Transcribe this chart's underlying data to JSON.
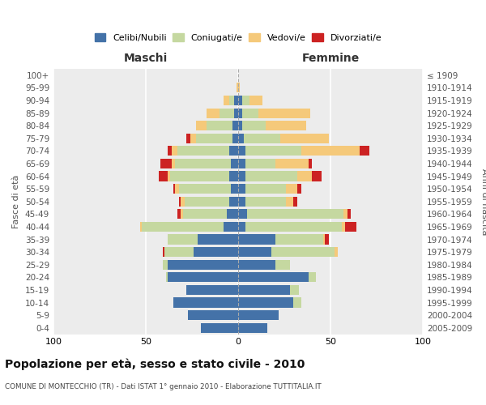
{
  "age_groups": [
    "0-4",
    "5-9",
    "10-14",
    "15-19",
    "20-24",
    "25-29",
    "30-34",
    "35-39",
    "40-44",
    "45-49",
    "50-54",
    "55-59",
    "60-64",
    "65-69",
    "70-74",
    "75-79",
    "80-84",
    "85-89",
    "90-94",
    "95-99",
    "100+"
  ],
  "birth_years": [
    "2005-2009",
    "2000-2004",
    "1995-1999",
    "1990-1994",
    "1985-1989",
    "1980-1984",
    "1975-1979",
    "1970-1974",
    "1965-1969",
    "1960-1964",
    "1955-1959",
    "1950-1954",
    "1945-1949",
    "1940-1944",
    "1935-1939",
    "1930-1934",
    "1925-1929",
    "1920-1924",
    "1915-1919",
    "1910-1914",
    "≤ 1909"
  ],
  "maschi": {
    "celibi": [
      20,
      27,
      35,
      28,
      38,
      38,
      24,
      22,
      8,
      6,
      5,
      4,
      5,
      4,
      5,
      3,
      3,
      2,
      2,
      0,
      0
    ],
    "coniugati": [
      0,
      0,
      0,
      0,
      1,
      3,
      16,
      16,
      44,
      24,
      24,
      28,
      32,
      30,
      28,
      20,
      14,
      8,
      3,
      0,
      0
    ],
    "vedovi": [
      0,
      0,
      0,
      0,
      0,
      0,
      0,
      0,
      1,
      1,
      2,
      2,
      1,
      2,
      3,
      3,
      6,
      7,
      3,
      1,
      0
    ],
    "divorziati": [
      0,
      0,
      0,
      0,
      0,
      0,
      1,
      0,
      0,
      2,
      1,
      1,
      5,
      6,
      2,
      2,
      0,
      0,
      0,
      0,
      0
    ]
  },
  "femmine": {
    "nubili": [
      16,
      22,
      30,
      28,
      38,
      20,
      18,
      20,
      4,
      5,
      4,
      4,
      4,
      4,
      4,
      3,
      2,
      2,
      2,
      0,
      0
    ],
    "coniugate": [
      0,
      0,
      4,
      5,
      4,
      8,
      34,
      26,
      52,
      52,
      22,
      22,
      28,
      16,
      30,
      20,
      13,
      9,
      4,
      0,
      0
    ],
    "vedove": [
      0,
      0,
      0,
      0,
      0,
      0,
      2,
      1,
      2,
      2,
      4,
      6,
      8,
      18,
      32,
      26,
      22,
      28,
      7,
      1,
      0
    ],
    "divorziate": [
      0,
      0,
      0,
      0,
      0,
      0,
      0,
      2,
      6,
      2,
      2,
      2,
      5,
      2,
      5,
      0,
      0,
      0,
      0,
      0,
      0
    ]
  },
  "colors": {
    "celibi": "#4472a8",
    "coniugati": "#c5d8a0",
    "vedovi": "#f5c97a",
    "divorziati": "#cc2222"
  },
  "title": "Popolazione per età, sesso e stato civile - 2010",
  "subtitle": "COMUNE DI MONTECCHIO (TR) - Dati ISTAT 1° gennaio 2010 - Elaborazione TUTTITALIA.IT",
  "xlabel_left": "Maschi",
  "xlabel_right": "Femmine",
  "ylabel_left": "Fasce di età",
  "ylabel_right": "Anni di nascita",
  "xlim": 100,
  "bg_color": "#ececec",
  "legend_labels": [
    "Celibi/Nubili",
    "Coniugati/e",
    "Vedovi/e",
    "Divorziati/e"
  ]
}
